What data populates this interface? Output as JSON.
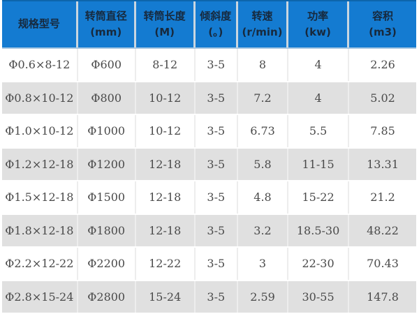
{
  "chart_data": {
    "type": "table",
    "columns": [
      {
        "label": "规格型号",
        "unit": ""
      },
      {
        "label": "转筒直径",
        "unit": "(mm)"
      },
      {
        "label": "转筒长度",
        "unit": "(M)"
      },
      {
        "label": "倾斜度",
        "unit": "(。)"
      },
      {
        "label": "转速",
        "unit": "(r/min)"
      },
      {
        "label": "功率",
        "unit": "(kw)"
      },
      {
        "label": "容积",
        "unit": "(m3)"
      }
    ],
    "rows": [
      [
        "Φ0.6×8-12",
        "Φ600",
        "8-12",
        "3-5",
        "8",
        "4",
        "2.26"
      ],
      [
        "Φ0.8×10-12",
        "Φ800",
        "10-12",
        "3-5",
        "7.2",
        "4",
        "5.02"
      ],
      [
        "Φ1.0×10-12",
        "Φ1000",
        "10-12",
        "3-5",
        "6.73",
        "5.5",
        "7.85"
      ],
      [
        "Φ1.2×12-18",
        "Φ1200",
        "12-18",
        "3-5",
        "5.8",
        "11-15",
        "13.31"
      ],
      [
        "Φ1.5×12-18",
        "Φ1500",
        "12-18",
        "3-5",
        "4.8",
        "15-22",
        "21.2"
      ],
      [
        "Φ1.8×12-18",
        "Φ1800",
        "12-18",
        "3-5",
        "3.2",
        "18.5-30",
        "48.22"
      ],
      [
        "Φ2.2×12-22",
        "Φ2200",
        "12-22",
        "3-5",
        "3",
        "22-30",
        "70.43"
      ],
      [
        "Φ2.8×15-24",
        "Φ2800",
        "15-24",
        "3-5",
        "2.59",
        "30-55",
        "147.8"
      ]
    ]
  },
  "colors": {
    "header_bg": "#147bd1",
    "header_top_border": "#0d65ab",
    "header_divider": "#c9d6e0",
    "header_underline": "#a9c7e1",
    "header_text": "#17293d",
    "row_alt_bg": "#e0e0e0",
    "row_text": "#4a4a4a",
    "cell_divider": "#ededed"
  }
}
